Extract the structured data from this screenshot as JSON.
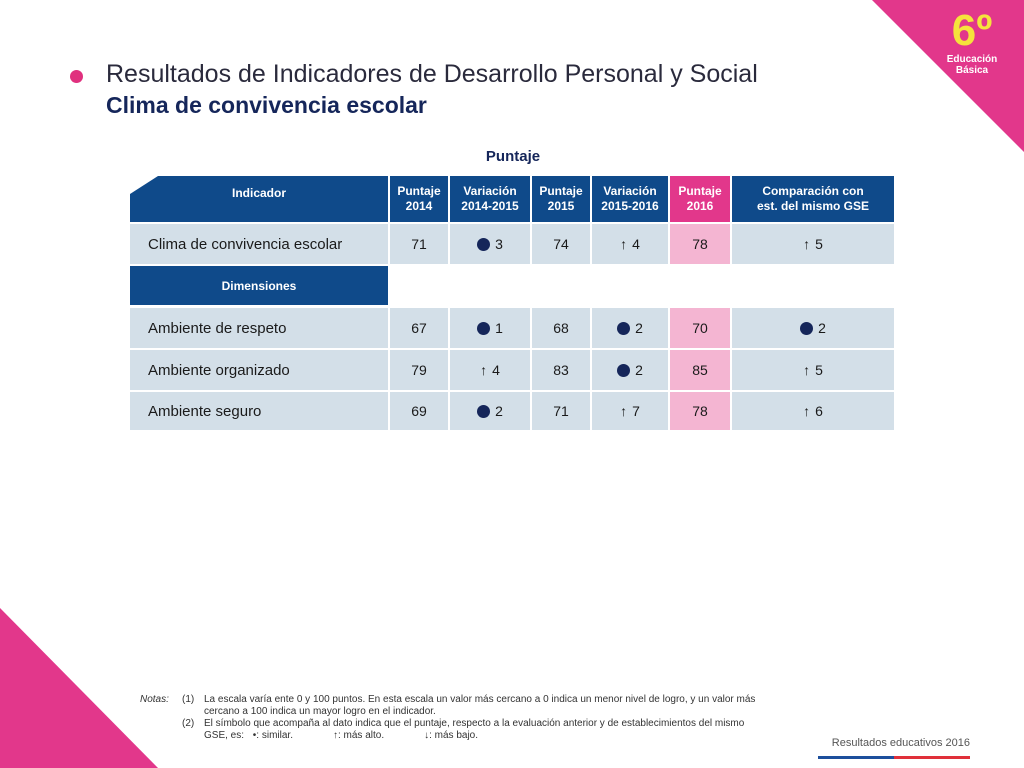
{
  "badge": {
    "grade": "6º",
    "line1": "Educación",
    "line2": "Básica"
  },
  "title": "Resultados de Indicadores de Desarrollo Personal y Social",
  "subtitle": "Clima de convivencia escolar",
  "table": {
    "caption": "Puntaje",
    "headers": {
      "indicador": "Indicador",
      "p2014_a": "Puntaje",
      "p2014_b": "2014",
      "v1415_a": "Variación",
      "v1415_b": "2014-2015",
      "p2015_a": "Puntaje",
      "p2015_b": "2015",
      "v1516_a": "Variación",
      "v1516_b": "2015-2016",
      "p2016_a": "Puntaje",
      "p2016_b": "2016",
      "comp_a": "Comparación con",
      "comp_b": "est. del mismo GSE"
    },
    "main_row": {
      "label": "Clima de convivencia escolar",
      "p2014": "71",
      "v1415": {
        "symbol": "dot",
        "value": "3"
      },
      "p2015": "74",
      "v1516": {
        "symbol": "up",
        "value": "4"
      },
      "p2016": "78",
      "comp": {
        "symbol": "up",
        "value": "5"
      }
    },
    "dimensions_label": "Dimensiones",
    "rows": [
      {
        "label": "Ambiente de respeto",
        "p2014": "67",
        "v1415": {
          "symbol": "dot",
          "value": "1"
        },
        "p2015": "68",
        "v1516": {
          "symbol": "dot",
          "value": "2"
        },
        "p2016": "70",
        "comp": {
          "symbol": "dot",
          "value": "2"
        }
      },
      {
        "label": "Ambiente organizado",
        "p2014": "79",
        "v1415": {
          "symbol": "up",
          "value": "4"
        },
        "p2015": "83",
        "v1516": {
          "symbol": "dot",
          "value": "2"
        },
        "p2016": "85",
        "comp": {
          "symbol": "up",
          "value": "5"
        }
      },
      {
        "label": "Ambiente seguro",
        "p2014": "69",
        "v1415": {
          "symbol": "dot",
          "value": "2"
        },
        "p2015": "71",
        "v1516": {
          "symbol": "up",
          "value": "7"
        },
        "p2016": "78",
        "comp": {
          "symbol": "up",
          "value": "6"
        }
      }
    ]
  },
  "notes": {
    "label": "Notas:",
    "n1_num": "(1)",
    "n1_text": "La escala varía ente 0 y 100 puntos. En esta escala un valor más cercano a 0 indica un menor nivel de logro, y un valor más cercano a 100 indica un mayor logro en el indicador.",
    "n2_num": "(2)",
    "n2_text": "El símbolo que acompaña al dato indica que el puntaje, respecto a la evaluación anterior y de establecimientos del mismo GSE, es:",
    "legend_similar": "•: similar.",
    "legend_up": "↑: más alto.",
    "legend_down": "↓: más bajo."
  },
  "footer": "Resultados educativos 2016",
  "colors": {
    "accent": "#e2378b",
    "header": "#0f4a8a",
    "cell": "#d3dfe8",
    "pink_cell": "#f4b5d2"
  }
}
